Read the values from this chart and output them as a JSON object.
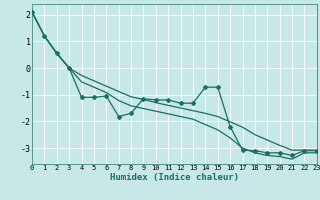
{
  "xlabel": "Humidex (Indice chaleur)",
  "background_color": "#c8e8e8",
  "grid_color": "#b0d8d8",
  "line_color": "#1a6e64",
  "xlim": [
    0,
    23
  ],
  "ylim": [
    -3.6,
    2.4
  ],
  "yticks": [
    -3,
    -2,
    -1,
    0,
    1,
    2
  ],
  "xticks": [
    0,
    1,
    2,
    3,
    4,
    5,
    6,
    7,
    8,
    9,
    10,
    11,
    12,
    13,
    14,
    15,
    16,
    17,
    18,
    19,
    20,
    21,
    22,
    23
  ],
  "x_data": [
    0,
    1,
    2,
    3,
    4,
    5,
    6,
    7,
    8,
    9,
    10,
    11,
    12,
    13,
    14,
    15,
    16,
    17,
    18,
    19,
    20,
    21,
    22,
    23
  ],
  "y_main": [
    2.1,
    1.2,
    0.55,
    0.0,
    -1.1,
    -1.1,
    -1.05,
    -1.82,
    -1.7,
    -1.15,
    -1.2,
    -1.2,
    -1.32,
    -1.32,
    -0.72,
    -0.72,
    -2.2,
    -3.08,
    -3.1,
    -3.18,
    -3.18,
    -3.28,
    -3.1,
    -3.1
  ],
  "y_upper": [
    2.1,
    1.2,
    0.55,
    0.0,
    -0.28,
    -0.48,
    -0.68,
    -0.88,
    -1.08,
    -1.18,
    -1.3,
    -1.4,
    -1.5,
    -1.6,
    -1.7,
    -1.82,
    -2.02,
    -2.22,
    -2.5,
    -2.7,
    -2.9,
    -3.08,
    -3.08,
    -3.08
  ],
  "y_lower": [
    2.1,
    1.2,
    0.55,
    0.0,
    -0.52,
    -0.72,
    -0.92,
    -1.22,
    -1.42,
    -1.52,
    -1.62,
    -1.72,
    -1.82,
    -1.92,
    -2.12,
    -2.32,
    -2.62,
    -3.0,
    -3.18,
    -3.28,
    -3.32,
    -3.42,
    -3.18,
    -3.18
  ]
}
